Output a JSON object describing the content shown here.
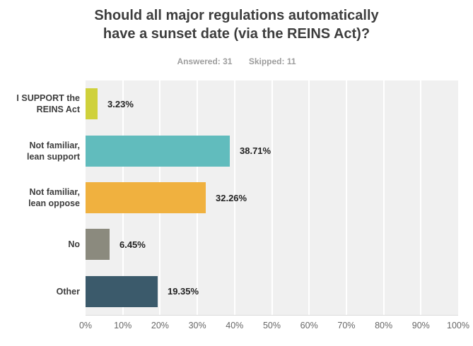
{
  "title": {
    "line1": "Should all major regulations automatically",
    "line2": "have a sunset date (via the REINS Act)?"
  },
  "meta": {
    "answered": "Answered: 31",
    "skipped": "Skipped: 11"
  },
  "chart_data": {
    "type": "bar",
    "orientation": "horizontal",
    "title": "Should all major regulations automatically have a sunset date (via the REINS Act)?",
    "answered": 31,
    "skipped": 11,
    "categories": [
      "I SUPPORT the\nREINS Act",
      "Not familiar,\nlean support",
      "Not familiar,\nlean oppose",
      "No",
      "Other"
    ],
    "values": [
      3.23,
      38.71,
      32.26,
      6.45,
      19.35
    ],
    "value_labels": [
      "3.23%",
      "38.71%",
      "32.26%",
      "6.45%",
      "19.35%"
    ],
    "bar_colors": [
      "#cfd13b",
      "#61bcbd",
      "#f0b13f",
      "#8b8a7e",
      "#3b5a6b"
    ],
    "x_ticks": [
      "0%",
      "10%",
      "20%",
      "30%",
      "40%",
      "50%",
      "60%",
      "70%",
      "80%",
      "90%",
      "100%"
    ],
    "xlim": [
      0,
      100
    ],
    "grid": true,
    "plot_background": "#f0f0f0",
    "gridline_color": "#ffffff",
    "legend_position": "none"
  }
}
